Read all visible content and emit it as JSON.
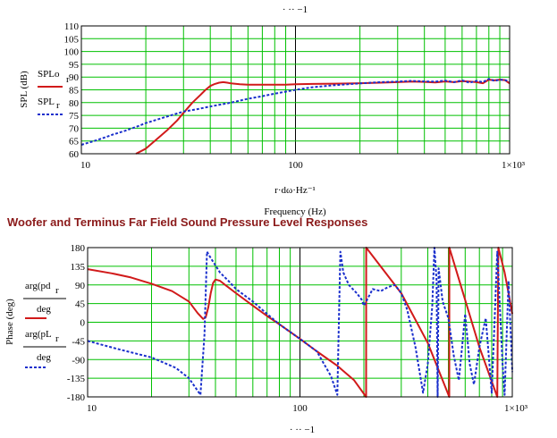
{
  "heading": "Woofer and Terminus Far Field Sound Pressure Level Responses",
  "colors": {
    "grid": "#00c000",
    "series_red": "#d11a1a",
    "series_blue": "#1a2fcc",
    "heading": "#8b1a1a"
  },
  "chart_data": [
    {
      "type": "line",
      "xscale": "log",
      "xlim": [
        10,
        1000
      ],
      "ylim": [
        60,
        110
      ],
      "yticks": [
        60,
        65,
        70,
        75,
        80,
        85,
        90,
        95,
        100,
        105,
        110
      ],
      "xtick_labels": [
        "10",
        "100",
        "1×10³"
      ],
      "top_label": "·  ·· −1",
      "xlabel": "r·dω·Hz⁻¹",
      "xlabel2": "Frequency (Hz)",
      "ylabel": "SPL (dB)",
      "legend": [
        {
          "label": "SPLo",
          "sub": "r",
          "style": "solid",
          "color": "#d11a1a"
        },
        {
          "label": "SPL",
          "sub": "r",
          "style": "dotted",
          "color": "#1a2fcc"
        }
      ],
      "series": [
        {
          "style": "solid",
          "color": "#d11a1a",
          "x": [
            18,
            20,
            22,
            25,
            28,
            30,
            33,
            36,
            38,
            40,
            42,
            44,
            46,
            48,
            50,
            55,
            60,
            70,
            80,
            90,
            100,
            120,
            150,
            200,
            250,
            300,
            350,
            400,
            450,
            500,
            550,
            600,
            650,
            700,
            750,
            800,
            850,
            900,
            950,
            1000
          ],
          "y": [
            59.8,
            62,
            65,
            69,
            73,
            76,
            80,
            83,
            85,
            86.5,
            87.3,
            87.8,
            88,
            87.8,
            87.5,
            87.2,
            87,
            87,
            87,
            87,
            87.2,
            87.3,
            87.4,
            87.6,
            87.8,
            88,
            88.2,
            88.1,
            87.9,
            88.3,
            88,
            88.4,
            88.2,
            88,
            87.6,
            89,
            88.7,
            89,
            88.8,
            87.5
          ]
        },
        {
          "style": "dotted",
          "color": "#1a2fcc",
          "x": [
            10,
            12,
            14,
            16,
            18,
            20,
            25,
            30,
            35,
            40,
            50,
            60,
            70,
            80,
            100,
            120,
            150,
            200,
            250,
            300,
            350,
            400,
            450,
            500,
            550,
            600,
            650,
            700,
            750,
            800,
            850,
            900,
            950,
            1000
          ],
          "y": [
            63.5,
            65.5,
            67.5,
            69,
            70.5,
            72,
            74.5,
            76.5,
            77.5,
            78.5,
            80,
            81.5,
            82.5,
            83.5,
            85,
            86,
            86.8,
            87.5,
            88,
            88.2,
            88.5,
            88.3,
            88.2,
            88.6,
            88,
            88.7,
            87.8,
            88.5,
            88,
            89.3,
            88.5,
            89,
            88.8,
            88.3
          ]
        }
      ]
    },
    {
      "type": "line",
      "xscale": "log",
      "xlim": [
        10,
        1000
      ],
      "ylim": [
        -180,
        180
      ],
      "yticks": [
        -180,
        -135,
        -90,
        -45,
        0,
        45,
        90,
        135,
        180
      ],
      "xtick_labels": [
        "10",
        "100",
        "1×10³"
      ],
      "bottom_label": "·  ·· −1",
      "ylabel": "Phase (deg)",
      "legend": [
        {
          "label": "arg(pd",
          "sub": "r",
          "den": "deg",
          "style": "solid",
          "color": "#d11a1a"
        },
        {
          "label": "arg(pL",
          "sub": "r",
          "den": "deg",
          "style": "dotted",
          "color": "#1a2fcc"
        }
      ],
      "series": [
        {
          "style": "solid",
          "color": "#d11a1a",
          "x": [
            10,
            13,
            16,
            20,
            25,
            30,
            33,
            35,
            36,
            37,
            38,
            39,
            40,
            42,
            45,
            50,
            60,
            70,
            80,
            100,
            120,
            150,
            180,
            205,
            205.1,
            300,
            400,
            505,
            505.1,
            700,
            850,
            860,
            920,
            960,
            1000
          ],
          "y": [
            128,
            118,
            108,
            93,
            75,
            50,
            22,
            8,
            12,
            35,
            70,
            95,
            103,
            100,
            88,
            70,
            40,
            15,
            -5,
            -40,
            -70,
            -105,
            -140,
            -180,
            180,
            70,
            -50,
            -180,
            180,
            -60,
            -180,
            180,
            120,
            70,
            20
          ]
        },
        {
          "style": "dotted",
          "color": "#1a2fcc",
          "x": [
            10,
            14,
            20,
            26,
            30,
            34,
            35.5,
            36.5,
            38,
            42,
            46,
            50,
            60,
            70,
            80,
            100,
            120,
            140,
            150,
            155,
            160,
            170,
            185,
            195,
            200,
            210,
            220,
            240,
            260,
            280,
            300,
            320,
            350,
            380,
            400,
            420,
            430,
            440,
            445,
            450,
            470,
            500,
            530,
            560,
            580,
            600,
            630,
            660,
            700,
            750,
            800,
            850,
            870,
            900,
            920,
            960,
            1000
          ],
          "y": [
            -45,
            -65,
            -85,
            -110,
            -135,
            -175,
            -30,
            170,
            155,
            120,
            100,
            80,
            50,
            20,
            -5,
            -40,
            -70,
            -130,
            -175,
            170,
            120,
            90,
            70,
            55,
            40,
            60,
            80,
            75,
            85,
            90,
            70,
            30,
            -60,
            -170,
            -100,
            40,
            180,
            100,
            -180,
            130,
            50,
            10,
            -80,
            -140,
            -60,
            20,
            -100,
            -150,
            -60,
            10,
            -170,
            170,
            60,
            -100,
            -175,
            100,
            -120
          ]
        }
      ]
    }
  ]
}
